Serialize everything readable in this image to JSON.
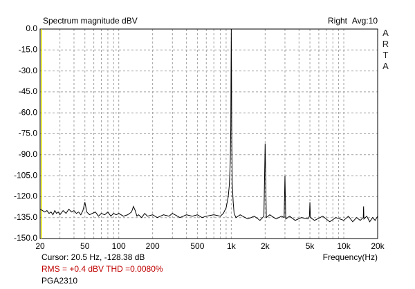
{
  "chart_data": {
    "type": "line",
    "title": "Spectrum magnitude dBV",
    "channel": "Right",
    "average": "Avg:10",
    "brand": "ARTA",
    "x_label": "Frequency(Hz)",
    "cursor_text": "Cursor:  20.5 Hz, -128.38 dB",
    "cursor_x": 20.5,
    "cursor_color": "#e0e000",
    "measurement_text": "RMS =  +0.4 dBV   THD =0.0080%",
    "device": "PGA2310",
    "x_log": true,
    "grid": true,
    "xlim": [
      20,
      20000
    ],
    "ylim": [
      -150,
      0
    ],
    "xticks": [
      20,
      50,
      100,
      200,
      500,
      {
        "value": 1000,
        "label": "1k"
      },
      {
        "value": 2000,
        "label": "2k"
      },
      {
        "value": 5000,
        "label": "5k"
      },
      {
        "value": 10000,
        "label": "10k"
      },
      {
        "value": 20000,
        "label": "20k"
      }
    ],
    "x_minor_grid": [
      30,
      40,
      60,
      70,
      80,
      90,
      300,
      400,
      600,
      700,
      800,
      900,
      3000,
      4000,
      6000,
      7000,
      8000,
      9000
    ],
    "yticks": [
      {
        "value": 0,
        "label": "0.0"
      },
      {
        "value": -15,
        "label": "-15.0"
      },
      {
        "value": -30,
        "label": "-30.0"
      },
      {
        "value": -45,
        "label": "-45.0"
      },
      {
        "value": -60,
        "label": "-60.0"
      },
      {
        "value": -75,
        "label": "-75.0"
      },
      {
        "value": -90,
        "label": "-90.0"
      },
      {
        "value": -105,
        "label": "-105.0"
      },
      {
        "value": -120,
        "label": "-120.0"
      },
      {
        "value": -135,
        "label": "-135.0"
      },
      {
        "value": -150,
        "label": "-150.0"
      }
    ],
    "x": [
      20,
      21,
      22,
      23,
      24,
      25,
      26,
      27,
      28,
      29,
      30,
      32,
      34,
      36,
      38,
      40,
      42,
      44,
      46,
      48,
      50,
      52,
      55,
      58,
      62,
      66,
      70,
      75,
      80,
      85,
      90,
      95,
      100,
      110,
      120,
      130,
      135,
      140,
      145,
      150,
      160,
      170,
      180,
      200,
      220,
      250,
      280,
      300,
      350,
      400,
      450,
      500,
      550,
      600,
      700,
      800,
      850,
      900,
      940,
      960,
      980,
      990,
      995,
      1000,
      1005,
      1010,
      1020,
      1040,
      1060,
      1100,
      1200,
      1400,
      1600,
      1800,
      1950,
      2000,
      2050,
      2200,
      2500,
      2800,
      2950,
      3000,
      3050,
      3300,
      3700,
      4200,
      4800,
      4950,
      5000,
      5050,
      5500,
      6500,
      7500,
      8500,
      10000,
      11000,
      12000,
      13000,
      14000,
      14900,
      15000,
      15100,
      16000,
      17000,
      18000,
      19000,
      20000
    ],
    "series": [
      {
        "color": "#000000",
        "values": [
          -129,
          -130,
          -131,
          -130,
          -132,
          -131,
          -133,
          -130,
          -132,
          -131,
          -133,
          -130,
          -132,
          -129,
          -131,
          -130,
          -132,
          -131,
          -133,
          -130,
          -124,
          -131,
          -133,
          -132,
          -131,
          -134,
          -132,
          -133,
          -131,
          -134,
          -132,
          -133,
          -132,
          -134,
          -133,
          -131,
          -127,
          -130,
          -134,
          -133,
          -135,
          -132,
          -134,
          -133,
          -135,
          -133,
          -134,
          -132,
          -135,
          -133,
          -134,
          -133,
          -135,
          -134,
          -133,
          -134,
          -132,
          -128,
          -120,
          -112,
          -95,
          -70,
          -30,
          0,
          -30,
          -80,
          -110,
          -124,
          -132,
          -135,
          -133,
          -136,
          -134,
          -137,
          -134,
          -82,
          -135,
          -133,
          -136,
          -134,
          -135,
          -105,
          -136,
          -134,
          -137,
          -135,
          -136,
          -134,
          -124,
          -135,
          -137,
          -134,
          -138,
          -135,
          -137,
          -134,
          -138,
          -135,
          -137,
          -135,
          -127,
          -136,
          -134,
          -138,
          -135,
          -137,
          -134
        ]
      }
    ]
  }
}
